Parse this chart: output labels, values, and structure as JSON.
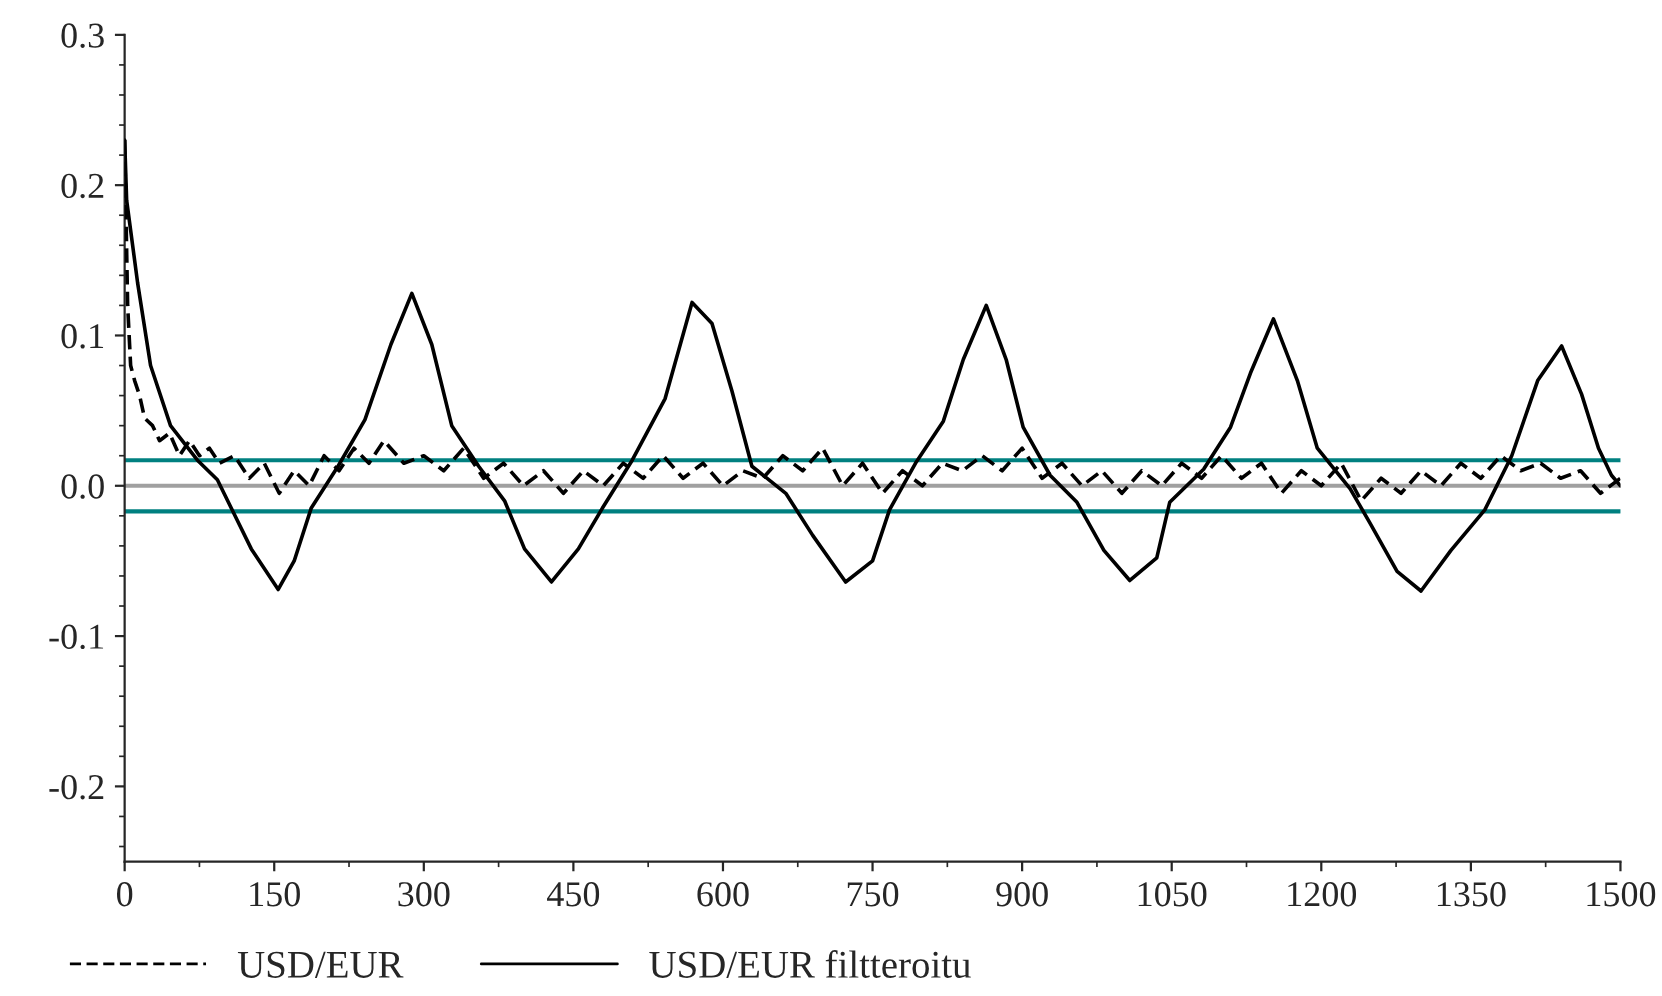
{
  "chart_data": {
    "type": "line",
    "xlim": [
      0,
      1500
    ],
    "xticks": [
      0,
      150,
      300,
      450,
      600,
      750,
      900,
      1050,
      1200,
      1350,
      1500
    ],
    "ylim": [
      -0.25,
      0.3
    ],
    "yticks": [
      -0.2,
      -0.1,
      {
        "value": 0,
        "label": "0.0"
      },
      0.1,
      0.2,
      0.3
    ],
    "grid": false,
    "legend": "bottom",
    "ref_lines": [
      {
        "axis": "y",
        "value": 0,
        "color": "#a0a0a0"
      },
      {
        "axis": "y",
        "value": 0.017,
        "color": "#008080"
      },
      {
        "axis": "y",
        "value": -0.017,
        "color": "#008080"
      }
    ],
    "series": [
      {
        "name": "USD/EUR",
        "color": "#000000",
        "line_style": "dashed",
        "x": [
          0,
          3,
          6,
          10,
          15,
          20,
          28,
          35,
          45,
          55,
          65,
          75,
          85,
          95,
          110,
          125,
          140,
          155,
          170,
          185,
          200,
          215,
          230,
          245,
          260,
          280,
          300,
          320,
          340,
          360,
          380,
          400,
          420,
          440,
          460,
          480,
          500,
          520,
          540,
          560,
          580,
          600,
          620,
          640,
          660,
          680,
          700,
          720,
          740,
          760,
          780,
          800,
          820,
          840,
          860,
          880,
          900,
          920,
          940,
          960,
          980,
          1000,
          1020,
          1040,
          1060,
          1080,
          1100,
          1120,
          1140,
          1160,
          1180,
          1200,
          1220,
          1240,
          1260,
          1280,
          1300,
          1320,
          1340,
          1360,
          1380,
          1400,
          1420,
          1440,
          1460,
          1480,
          1500
        ],
        "values": [
          0.23,
          0.12,
          0.08,
          0.07,
          0.06,
          0.045,
          0.04,
          0.03,
          0.035,
          0.02,
          0.03,
          0.02,
          0.025,
          0.015,
          0.02,
          0.005,
          0.015,
          -0.005,
          0.01,
          0.0,
          0.02,
          0.01,
          0.025,
          0.015,
          0.03,
          0.015,
          0.02,
          0.01,
          0.025,
          0.005,
          0.015,
          0.0,
          0.01,
          -0.005,
          0.01,
          0.0,
          0.015,
          0.005,
          0.02,
          0.005,
          0.015,
          0.0,
          0.01,
          0.005,
          0.02,
          0.01,
          0.025,
          0.0,
          0.015,
          -0.005,
          0.01,
          0.0,
          0.015,
          0.01,
          0.02,
          0.01,
          0.025,
          0.005,
          0.015,
          0.0,
          0.01,
          -0.005,
          0.01,
          0.0,
          0.015,
          0.005,
          0.02,
          0.005,
          0.015,
          -0.005,
          0.01,
          0.0,
          0.015,
          -0.01,
          0.005,
          -0.005,
          0.01,
          0.0,
          0.015,
          0.005,
          0.02,
          0.01,
          0.015,
          0.005,
          0.01,
          -0.005,
          0.005
        ]
      },
      {
        "name": "USD/EUR filtteroitu",
        "color": "#000000",
        "line_style": "solid",
        "x": [
          0,
          2,
          13,
          26,
          46,
          73,
          93,
          107,
          127,
          154,
          170,
          187,
          214,
          241,
          267,
          288,
          308,
          328,
          355,
          381,
          401,
          428,
          455,
          479,
          509,
          542,
          569,
          589,
          609,
          629,
          663,
          690,
          723,
          750,
          767,
          794,
          821,
          841,
          864,
          884,
          901,
          928,
          955,
          982,
          1008,
          1035,
          1048,
          1082,
          1109,
          1129,
          1152,
          1176,
          1196,
          1229,
          1249,
          1276,
          1300,
          1330,
          1364,
          1391,
          1417,
          1441,
          1461,
          1478,
          1491,
          1500
        ],
        "values": [
          0.23,
          0.19,
          0.135,
          0.08,
          0.04,
          0.017,
          0.004,
          -0.015,
          -0.042,
          -0.069,
          -0.05,
          -0.015,
          0.013,
          0.044,
          0.094,
          0.128,
          0.094,
          0.04,
          0.013,
          -0.01,
          -0.042,
          -0.064,
          -0.042,
          -0.015,
          0.017,
          0.058,
          0.122,
          0.108,
          0.063,
          0.013,
          -0.005,
          -0.033,
          -0.064,
          -0.05,
          -0.016,
          0.016,
          0.043,
          0.084,
          0.12,
          0.084,
          0.039,
          0.007,
          -0.011,
          -0.043,
          -0.063,
          -0.048,
          -0.011,
          0.011,
          0.039,
          0.075,
          0.111,
          0.07,
          0.025,
          -0.002,
          -0.025,
          -0.057,
          -0.07,
          -0.043,
          -0.016,
          0.02,
          0.07,
          0.093,
          0.061,
          0.025,
          0.007,
          0.0
        ]
      }
    ]
  }
}
